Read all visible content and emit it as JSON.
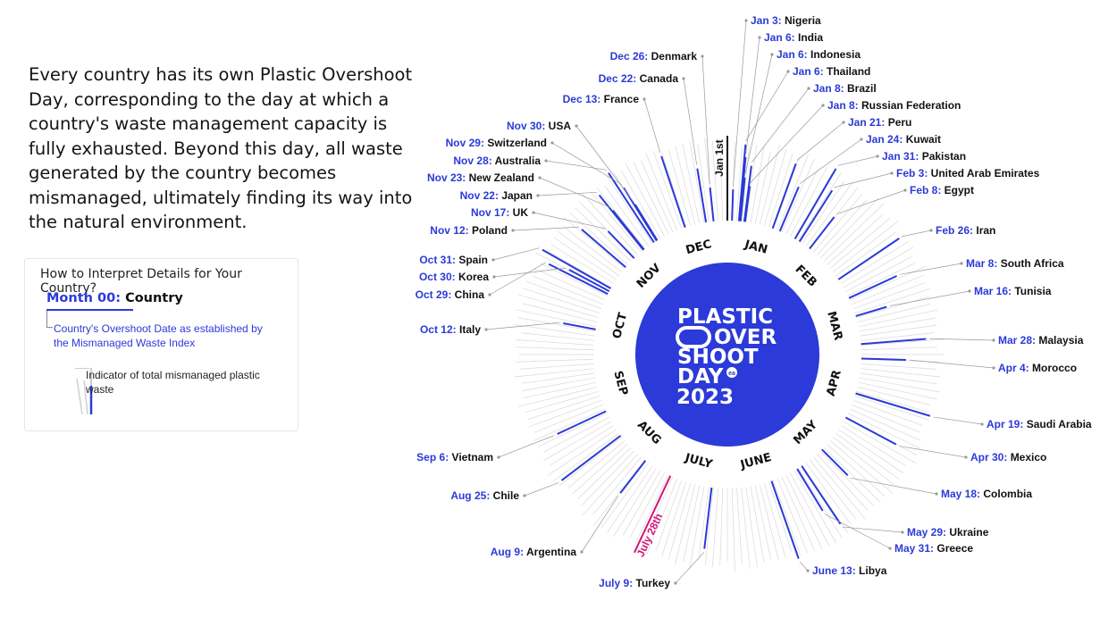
{
  "intro_text": "Every country has its own Plastic Overshoot Day, corresponding to the day at which a country's waste management capacity is fully exhausted. Beyond this day, all waste generated by the country becomes mismanaged, ultimately finding its way into the natural environment.",
  "legend": {
    "title": "How to Interpret Details for Your Country?",
    "example_month": "Month 00:",
    "example_country": "Country",
    "date_description": "Country's Overshoot Date as established by the Mismanaged Waste Index",
    "indicator_description": "Indicator of total mismanaged plastic waste"
  },
  "center": {
    "line1": "PLASTIC",
    "line2": "OVER",
    "line3": "SHOOT",
    "line4": "DAY",
    "badge": "ea",
    "year": "2023"
  },
  "colors": {
    "blue": "#2b3ad8",
    "magenta": "#d4157a",
    "gray_bar": "#d9d9d9",
    "text": "#111111"
  },
  "chart_data": {
    "type": "radial-timeline",
    "months": [
      "JAN",
      "FEB",
      "MAR",
      "APR",
      "MAY",
      "JUNE",
      "JULY",
      "AUG",
      "SEP",
      "OCT",
      "NOV",
      "DEC"
    ],
    "markers": [
      {
        "label": "Jan 1st",
        "day_of_year": 1
      },
      {
        "label": "July 28th",
        "day_of_year": 209
      }
    ],
    "countries": [
      {
        "date": "Jan 3",
        "country": "Nigeria",
        "day_of_year": 3
      },
      {
        "date": "Jan 6",
        "country": "India",
        "day_of_year": 6
      },
      {
        "date": "Jan 6",
        "country": "Indonesia",
        "day_of_year": 6
      },
      {
        "date": "Jan 6",
        "country": "Thailand",
        "day_of_year": 6
      },
      {
        "date": "Jan 8",
        "country": "Brazil",
        "day_of_year": 8
      },
      {
        "date": "Jan 8",
        "country": "Russian Federation",
        "day_of_year": 8
      },
      {
        "date": "Jan 21",
        "country": "Peru",
        "day_of_year": 21
      },
      {
        "date": "Jan 24",
        "country": "Kuwait",
        "day_of_year": 24
      },
      {
        "date": "Jan 31",
        "country": "Pakistan",
        "day_of_year": 31
      },
      {
        "date": "Feb 3",
        "country": "United Arab Emirates",
        "day_of_year": 34
      },
      {
        "date": "Feb 8",
        "country": "Egypt",
        "day_of_year": 39
      },
      {
        "date": "Feb 26",
        "country": "Iran",
        "day_of_year": 57
      },
      {
        "date": "Mar 8",
        "country": "South Africa",
        "day_of_year": 67
      },
      {
        "date": "Mar 16",
        "country": "Tunisia",
        "day_of_year": 75
      },
      {
        "date": "Mar 28",
        "country": "Malaysia",
        "day_of_year": 87
      },
      {
        "date": "Apr 4",
        "country": "Morocco",
        "day_of_year": 94
      },
      {
        "date": "Apr 19",
        "country": "Saudi Arabia",
        "day_of_year": 109
      },
      {
        "date": "Apr 30",
        "country": "Mexico",
        "day_of_year": 120
      },
      {
        "date": "May 18",
        "country": "Colombia",
        "day_of_year": 138
      },
      {
        "date": "May 29",
        "country": "Ukraine",
        "day_of_year": 149
      },
      {
        "date": "May 31",
        "country": "Greece",
        "day_of_year": 151
      },
      {
        "date": "June 13",
        "country": "Libya",
        "day_of_year": 164
      },
      {
        "date": "July 9",
        "country": "Turkey",
        "day_of_year": 190
      },
      {
        "date": "Aug 9",
        "country": "Argentina",
        "day_of_year": 221
      },
      {
        "date": "Aug 25",
        "country": "Chile",
        "day_of_year": 237
      },
      {
        "date": "Sep 6",
        "country": "Vietnam",
        "day_of_year": 249
      },
      {
        "date": "Oct 12",
        "country": "Italy",
        "day_of_year": 285
      },
      {
        "date": "Oct 29",
        "country": "China",
        "day_of_year": 302
      },
      {
        "date": "Oct 30",
        "country": "Korea",
        "day_of_year": 303
      },
      {
        "date": "Oct 31",
        "country": "Spain",
        "day_of_year": 304
      },
      {
        "date": "Nov 12",
        "country": "Poland",
        "day_of_year": 316
      },
      {
        "date": "Nov 17",
        "country": "UK",
        "day_of_year": 321
      },
      {
        "date": "Nov 22",
        "country": "Japan",
        "day_of_year": 326
      },
      {
        "date": "Nov 23",
        "country": "New Zealand",
        "day_of_year": 327
      },
      {
        "date": "Nov 28",
        "country": "Australia",
        "day_of_year": 332
      },
      {
        "date": "Nov 29",
        "country": "Switzerland",
        "day_of_year": 333
      },
      {
        "date": "Nov 30",
        "country": "USA",
        "day_of_year": 334
      },
      {
        "date": "Dec 13",
        "country": "France",
        "day_of_year": 347
      },
      {
        "date": "Dec 22",
        "country": "Canada",
        "day_of_year": 356
      },
      {
        "date": "Dec 26",
        "country": "Denmark",
        "day_of_year": 360
      }
    ]
  }
}
